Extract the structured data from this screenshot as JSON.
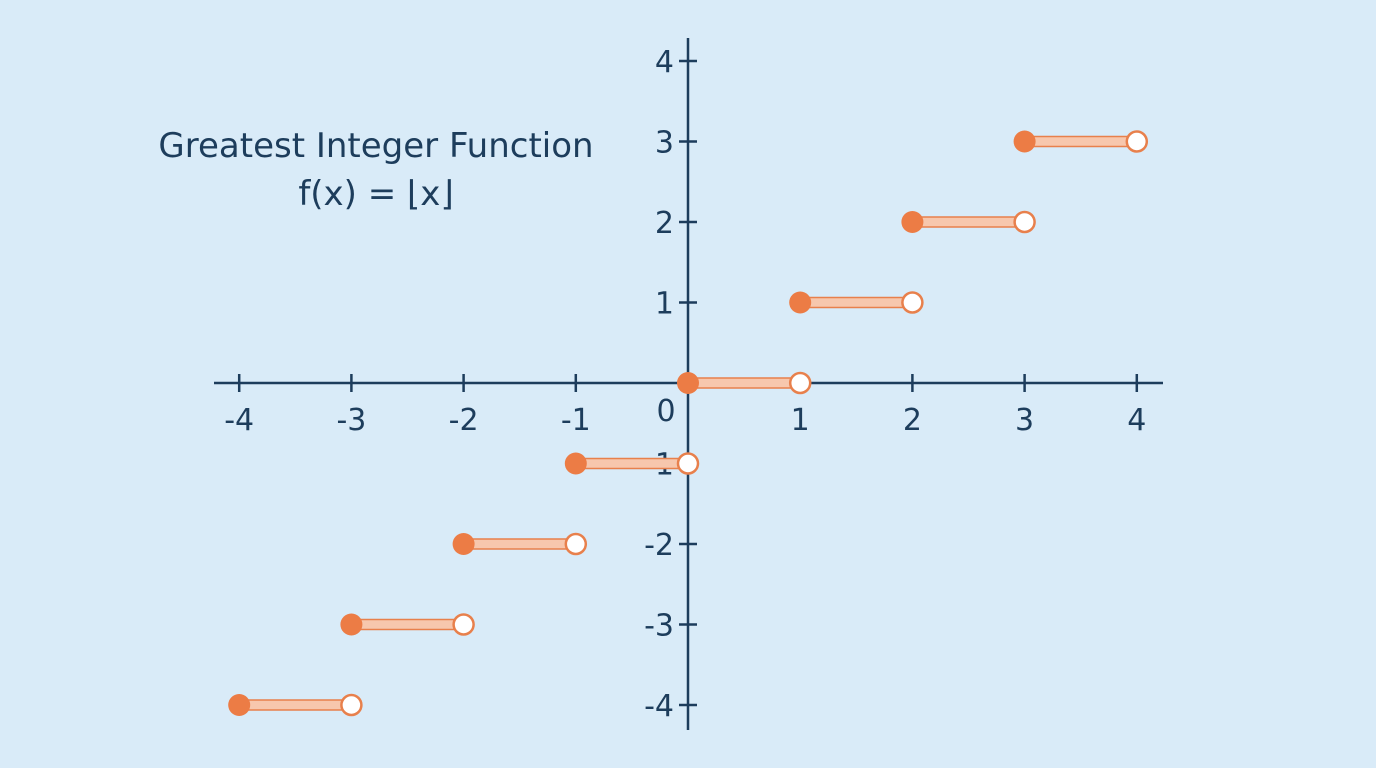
{
  "chart_data": {
    "type": "line",
    "title": "Greatest Integer Function",
    "subtitle": "f(x) = ⌊x⌋",
    "xlabel": "",
    "ylabel": "",
    "xlim": [
      -4,
      4
    ],
    "ylim": [
      -4,
      4
    ],
    "x_ticks": [
      -4,
      -3,
      -2,
      -1,
      1,
      2,
      3,
      4
    ],
    "x_tick_labels": [
      "-4",
      "-3",
      "-2",
      "-1",
      "1",
      "2",
      "3",
      "4"
    ],
    "y_ticks": [
      4,
      3,
      2,
      1,
      -1,
      -2,
      -3,
      -4
    ],
    "y_tick_labels": [
      "4",
      "3",
      "2",
      "1",
      "-1",
      "-2",
      "-3",
      "-4"
    ],
    "origin_label": "0",
    "grid": false,
    "series": [
      {
        "steps": [
          {
            "x_start": -4,
            "x_end": -3,
            "y": -4
          },
          {
            "x_start": -3,
            "x_end": -2,
            "y": -3
          },
          {
            "x_start": -2,
            "x_end": -1,
            "y": -2
          },
          {
            "x_start": -1,
            "x_end": 0,
            "y": -1
          },
          {
            "x_start": 0,
            "x_end": 1,
            "y": 0
          },
          {
            "x_start": 1,
            "x_end": 2,
            "y": 1
          },
          {
            "x_start": 2,
            "x_end": 3,
            "y": 2
          },
          {
            "x_start": 3,
            "x_end": 4,
            "y": 3
          }
        ],
        "closed_endpoint": "left",
        "open_endpoint": "right"
      }
    ],
    "colors": {
      "background": "#d9ebf8",
      "axis": "#1d3d5c",
      "text": "#1d3d5c",
      "step_fill": "#f7c7ad",
      "step_edge": "#e8804c",
      "closed_dot": "#ec7c45",
      "open_dot_fill": "#ffffff"
    }
  }
}
